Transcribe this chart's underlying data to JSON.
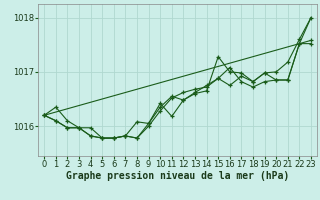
{
  "background_color": "#cceee8",
  "grid_color": "#b0d8d0",
  "line_color": "#1a5c1a",
  "marker_color": "#1a5c1a",
  "xlabel": "Graphe pression niveau de la mer (hPa)",
  "xlim": [
    -0.5,
    23.5
  ],
  "ylim": [
    1015.45,
    1018.25
  ],
  "yticks": [
    1016,
    1017,
    1018
  ],
  "xticks": [
    0,
    1,
    2,
    3,
    4,
    5,
    6,
    7,
    8,
    9,
    10,
    11,
    12,
    13,
    14,
    15,
    16,
    17,
    18,
    19,
    20,
    21,
    22,
    23
  ],
  "series": [
    {
      "x": [
        0,
        1,
        2,
        3,
        4,
        5,
        6,
        7,
        8,
        9,
        10,
        11,
        12,
        13,
        14,
        15,
        16,
        17,
        18,
        19,
        20,
        21,
        22,
        23
      ],
      "y": [
        1016.2,
        1016.35,
        1016.1,
        1015.97,
        1015.97,
        1015.78,
        1015.78,
        1015.82,
        1016.08,
        1016.05,
        1016.35,
        1016.55,
        1016.48,
        1016.6,
        1016.65,
        1017.28,
        1017.0,
        1016.98,
        1016.82,
        1016.98,
        1017.0,
        1017.18,
        1017.6,
        1018.0
      ]
    },
    {
      "x": [
        0,
        1,
        2,
        3,
        4,
        5,
        6,
        7,
        8,
        9,
        10,
        11,
        12,
        13,
        14,
        15,
        16,
        17,
        18,
        19,
        20,
        21,
        22,
        23
      ],
      "y": [
        1016.2,
        1016.1,
        1015.97,
        1015.97,
        1015.82,
        1015.78,
        1015.78,
        1015.82,
        1015.78,
        1016.0,
        1016.28,
        1016.52,
        1016.62,
        1016.68,
        1016.72,
        1016.88,
        1016.75,
        1016.92,
        1016.82,
        1016.98,
        1016.85,
        1016.85,
        1017.52,
        1017.58
      ]
    },
    {
      "x": [
        0,
        1,
        2,
        3,
        4,
        5,
        6,
        7,
        8,
        9,
        10,
        11,
        12,
        13,
        14,
        15,
        16,
        17,
        18,
        19,
        20,
        21,
        22,
        23
      ],
      "y": [
        1016.2,
        1016.1,
        1015.97,
        1015.97,
        1015.82,
        1015.78,
        1015.78,
        1015.82,
        1015.78,
        1016.05,
        1016.42,
        1016.18,
        1016.48,
        1016.62,
        1016.75,
        1016.88,
        1017.08,
        1016.82,
        1016.72,
        1016.82,
        1016.85,
        1016.85,
        1017.52,
        1017.52
      ]
    },
    {
      "x": [
        0,
        22,
        23
      ],
      "y": [
        1016.2,
        1017.52,
        1018.0
      ]
    }
  ],
  "title_fontsize": 8,
  "xlabel_fontsize": 7,
  "tick_fontsize": 6
}
